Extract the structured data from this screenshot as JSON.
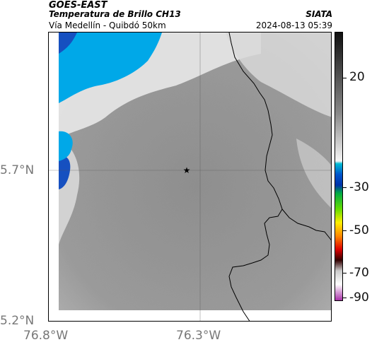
{
  "header": {
    "satellite": "GOES-EAST",
    "product": "Temperatura de Brillo CH13",
    "route": "Vía Medellín - Quibdó 50km",
    "agency": "SIATA",
    "datetime": "2024-08-13 05:39"
  },
  "axes": {
    "lat_labels": [
      "5.7°N",
      "5.2°N"
    ],
    "lon_labels": [
      "76.8°W",
      "76.3°W"
    ]
  },
  "colorbar": {
    "labels": [
      "20",
      "-30",
      "-50",
      "-70",
      "-90"
    ]
  },
  "map": {
    "marker_icon": "star-icon",
    "colors": {
      "cloud_top_cold": "#00a8e8",
      "cloud_deep": "#1650c0",
      "warm_surface": "#8c8c8c",
      "border_line": "#000000"
    }
  }
}
